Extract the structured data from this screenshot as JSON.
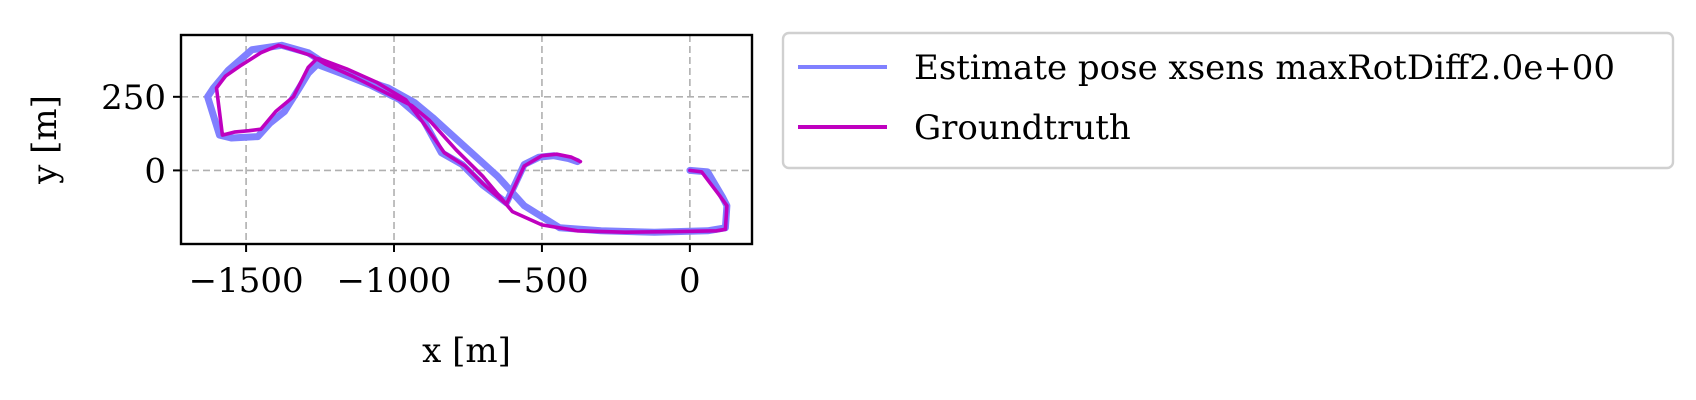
{
  "chart_data": {
    "type": "line",
    "title": "",
    "xlabel": "x [m]",
    "ylabel": "y [m]",
    "xlim": [
      -1720,
      210
    ],
    "ylim": [
      -250,
      460
    ],
    "xticks": [
      -1500,
      -1000,
      -500,
      0
    ],
    "xtick_labels": [
      "−1500",
      "−1000",
      "−500",
      "0"
    ],
    "yticks": [
      0,
      250
    ],
    "ytick_labels": [
      "0",
      "250"
    ],
    "grid": true,
    "legend_position": "outside-right",
    "series": [
      {
        "name": "Estimate pose xsens maxRotDiff2.0e+00",
        "color": "#8080ff",
        "x": [
          -380,
          -410,
          -460,
          -510,
          -560,
          -620,
          -700,
          -770,
          -840,
          -900,
          -980,
          -1080,
          -1180,
          -1260,
          -1290,
          -1320,
          -1370,
          -1420,
          -1460,
          -1550,
          -1590,
          -1630,
          -1610,
          -1560,
          -1480,
          -1380,
          -1290,
          -1230,
          -1140,
          -1020,
          -930,
          -870,
          -760,
          -650,
          -560,
          -440,
          -300,
          -120,
          60,
          120,
          125,
          110,
          60,
          0
        ],
        "y": [
          30,
          40,
          50,
          45,
          20,
          -110,
          -50,
          20,
          60,
          170,
          240,
          290,
          330,
          360,
          330,
          280,
          200,
          160,
          115,
          110,
          120,
          250,
          280,
          340,
          410,
          425,
          400,
          360,
          320,
          280,
          230,
          180,
          80,
          -20,
          -120,
          -195,
          -205,
          -210,
          -205,
          -195,
          -120,
          -90,
          -5,
          0
        ]
      },
      {
        "name": "Groundtruth",
        "color": "#bf00bf",
        "x": [
          -370,
          -400,
          -450,
          -500,
          -560,
          -620,
          -700,
          -760,
          -830,
          -900,
          -960,
          -1060,
          -1160,
          -1240,
          -1260,
          -1290,
          -1340,
          -1400,
          -1450,
          -1490,
          -1540,
          -1580,
          -1600,
          -1570,
          -1520,
          -1450,
          -1390,
          -1340,
          -1280,
          -1230,
          -1140,
          -1030,
          -940,
          -880,
          -790,
          -700,
          -600,
          -500,
          -380,
          -220,
          -40,
          90,
          120,
          125,
          100,
          40,
          0
        ],
        "y": [
          30,
          45,
          55,
          50,
          15,
          -115,
          -45,
          15,
          60,
          160,
          240,
          300,
          345,
          375,
          380,
          350,
          250,
          200,
          140,
          135,
          130,
          120,
          280,
          320,
          355,
          400,
          425,
          410,
          390,
          360,
          320,
          265,
          220,
          170,
          70,
          -20,
          -140,
          -185,
          -205,
          -210,
          -208,
          -205,
          -200,
          -120,
          -85,
          -5,
          0
        ]
      }
    ]
  }
}
